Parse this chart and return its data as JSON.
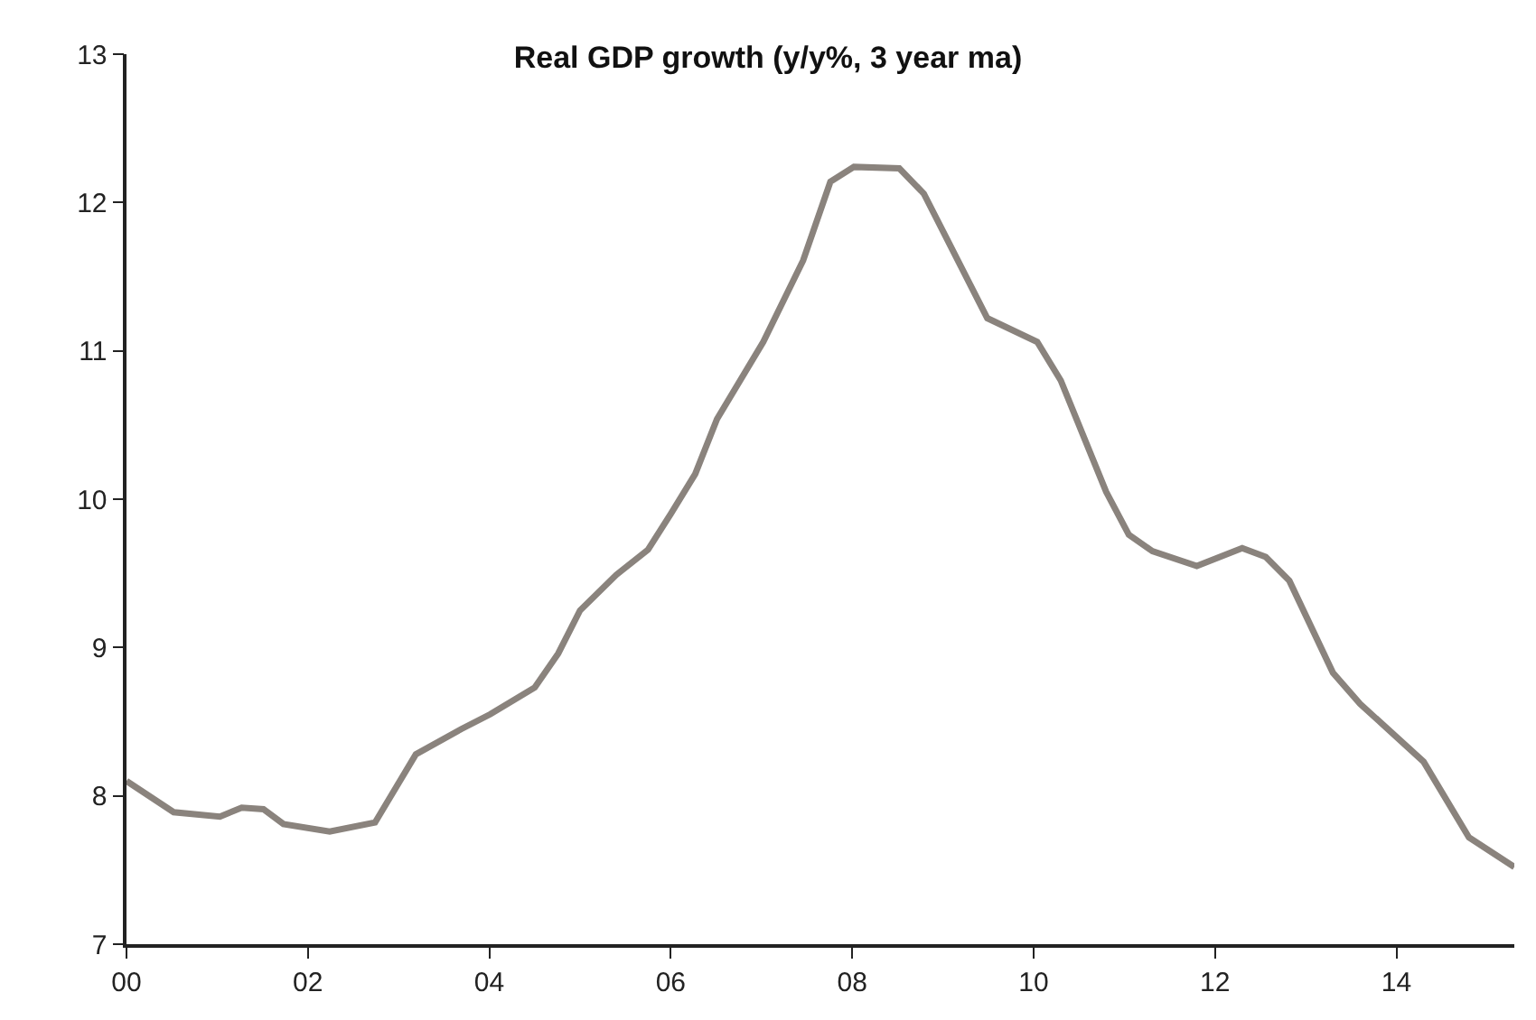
{
  "chart_data": {
    "type": "line",
    "title": "Real GDP growth (y/y%, 3 year ma)",
    "x": [
      0,
      0.52,
      1.03,
      1.27,
      1.51,
      1.73,
      2.24,
      2.74,
      3.19,
      3.69,
      4.01,
      4.5,
      4.76,
      5.0,
      5.4,
      5.75,
      6.0,
      6.27,
      6.51,
      7.02,
      7.46,
      7.76,
      8.02,
      8.52,
      8.79,
      9.49,
      10.04,
      10.3,
      10.8,
      11.05,
      11.31,
      11.8,
      12.3,
      12.56,
      12.82,
      13.3,
      13.6,
      14.3,
      14.8,
      15.3
    ],
    "series": [
      {
        "color": "#8a837d",
        "values": [
          8.1,
          7.89,
          7.86,
          7.92,
          7.91,
          7.81,
          7.76,
          7.82,
          8.28,
          8.45,
          8.55,
          8.73,
          8.96,
          9.25,
          9.49,
          9.66,
          9.9,
          10.17,
          10.54,
          11.06,
          11.61,
          12.14,
          12.24,
          12.23,
          12.06,
          11.22,
          11.06,
          10.8,
          10.05,
          9.76,
          9.65,
          9.55,
          9.67,
          9.61,
          9.45,
          8.83,
          8.62,
          8.23,
          7.72,
          7.52
        ]
      }
    ],
    "xlim": [
      0,
      15.3
    ],
    "xticks": [
      {
        "value": 0,
        "label": "00"
      },
      {
        "value": 2,
        "label": "02"
      },
      {
        "value": 4,
        "label": "04"
      },
      {
        "value": 6,
        "label": "06"
      },
      {
        "value": 8,
        "label": "08"
      },
      {
        "value": 10,
        "label": "10"
      },
      {
        "value": 12,
        "label": "12"
      },
      {
        "value": 14,
        "label": "14"
      }
    ],
    "ylim": [
      7,
      13
    ],
    "yticks": [
      7,
      8,
      9,
      10,
      11,
      12,
      13
    ],
    "marker": "none",
    "line_style": "solid"
  }
}
